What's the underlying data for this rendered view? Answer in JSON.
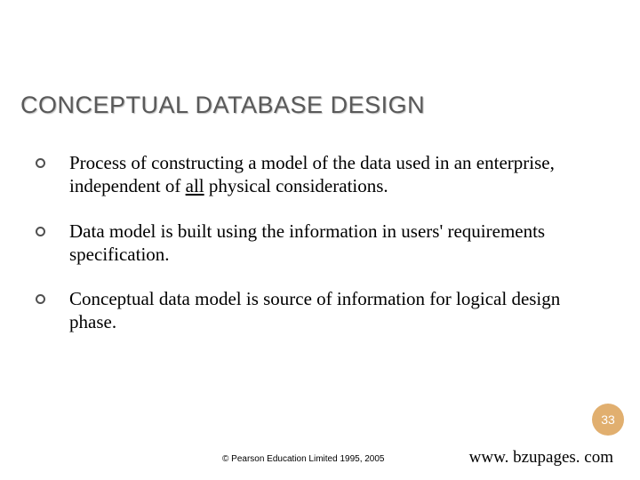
{
  "title": {
    "text": "CONCEPTUAL DATABASE DESIGN",
    "color": "#595959",
    "fontsize": 27
  },
  "bullets": {
    "fontsize": 21,
    "color": "#000000",
    "marker_color": "#505050",
    "items": [
      {
        "pre": "Process of constructing a model of the data used in an enterprise, independent of ",
        "underlined": "all",
        "post": " physical considerations."
      },
      {
        "pre": "Data model is built using the information in  users' requirements specification.",
        "underlined": "",
        "post": ""
      },
      {
        "pre": "Conceptual data model is source of information for logical design phase.",
        "underlined": "",
        "post": ""
      }
    ]
  },
  "page_badge": {
    "number": "33",
    "bg_color": "#e1af6f",
    "text_color": "#ffffff",
    "fontsize": 14
  },
  "footer": {
    "copyright": "© Pearson Education Limited 1995, 2005",
    "copyright_fontsize": 10,
    "copyright_color": "#000000",
    "url": "www. bzupages. com",
    "url_fontsize": 19,
    "url_color": "#000000"
  }
}
